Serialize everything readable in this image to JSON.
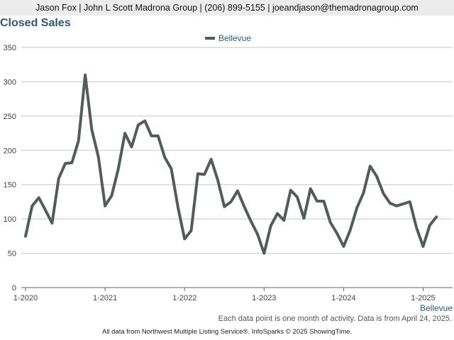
{
  "header": {
    "text": "Jason Fox | John L Scott Madrona Group | (206) 899-5155 | joeandjason@themadronagroup.com"
  },
  "chart_data": {
    "type": "line",
    "title": "Closed Sales",
    "xlabel": "",
    "ylabel": "",
    "ylim": [
      0,
      350
    ],
    "yticks": [
      0,
      50,
      100,
      150,
      200,
      250,
      300,
      350
    ],
    "xtick_labels": [
      "1-2020",
      "1-2021",
      "1-2022",
      "1-2023",
      "1-2024",
      "1-2025"
    ],
    "grid": "horizontal",
    "legend_position": "top-center",
    "x_end_label": "Bellevue",
    "series": [
      {
        "name": "Bellevue",
        "color": "#545c5a",
        "x": [
          "1-2020",
          "2-2020",
          "3-2020",
          "4-2020",
          "5-2020",
          "6-2020",
          "7-2020",
          "8-2020",
          "9-2020",
          "10-2020",
          "11-2020",
          "12-2020",
          "1-2021",
          "2-2021",
          "3-2021",
          "4-2021",
          "5-2021",
          "6-2021",
          "7-2021",
          "8-2021",
          "9-2021",
          "10-2021",
          "11-2021",
          "12-2021",
          "1-2022",
          "2-2022",
          "3-2022",
          "4-2022",
          "5-2022",
          "6-2022",
          "7-2022",
          "8-2022",
          "9-2022",
          "10-2022",
          "11-2022",
          "12-2022",
          "1-2023",
          "2-2023",
          "3-2023",
          "4-2023",
          "5-2023",
          "6-2023",
          "7-2023",
          "8-2023",
          "9-2023",
          "10-2023",
          "11-2023",
          "12-2023",
          "1-2024",
          "2-2024",
          "3-2024",
          "4-2024",
          "5-2024",
          "6-2024",
          "7-2024",
          "8-2024",
          "9-2024",
          "10-2024",
          "11-2024",
          "12-2024",
          "1-2025",
          "2-2025",
          "3-2025"
        ],
        "values": [
          75,
          119,
          131,
          113,
          94,
          159,
          181,
          182,
          214,
          310,
          230,
          190,
          119,
          134,
          173,
          225,
          205,
          237,
          243,
          221,
          221,
          190,
          173,
          117,
          71,
          83,
          166,
          165,
          187,
          157,
          118,
          125,
          141,
          118,
          97,
          78,
          50,
          90,
          108,
          98,
          142,
          132,
          101,
          144,
          126,
          126,
          95,
          79,
          60,
          84,
          116,
          138,
          177,
          162,
          137,
          123,
          119,
          122,
          125,
          87,
          60,
          91,
          103
        ]
      }
    ]
  },
  "footnote": "Each data point is one month of activity. Data is from April 24, 2025.",
  "source": "All data from Northwest Multiple Listing Service®. InfoSparks © 2025 ShowingTime."
}
